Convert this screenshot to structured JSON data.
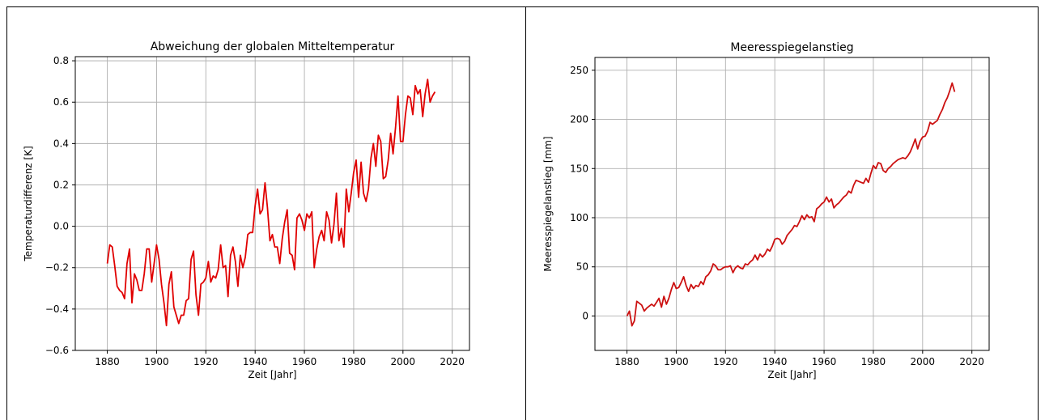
{
  "chart_data": [
    {
      "type": "line",
      "title": "Abweichung der globalen Mitteltemperatur",
      "xlabel": "Zeit [Jahr]",
      "ylabel": "Temperaturdifferenz [K]",
      "xlim": [
        1867,
        2027
      ],
      "ylim": [
        -0.6,
        0.82
      ],
      "xticks": [
        1880,
        1900,
        1920,
        1940,
        1960,
        1980,
        2000,
        2020
      ],
      "yticks": [
        -0.6,
        -0.4,
        -0.2,
        0.0,
        0.2,
        0.4,
        0.6,
        0.8
      ],
      "ytick_labels": [
        "−0.6",
        "−0.4",
        "−0.2",
        "0.0",
        "0.2",
        "0.4",
        "0.6",
        "0.8"
      ],
      "grid": true,
      "color": "#e00000",
      "series": [
        {
          "x": [
            1880,
            1881,
            1882,
            1883,
            1884,
            1885,
            1886,
            1887,
            1888,
            1889,
            1890,
            1891,
            1892,
            1893,
            1894,
            1895,
            1896,
            1897,
            1898,
            1899,
            1900,
            1901,
            1902,
            1903,
            1904,
            1905,
            1906,
            1907,
            1908,
            1909,
            1910,
            1911,
            1912,
            1913,
            1914,
            1915,
            1916,
            1917,
            1918,
            1919,
            1920,
            1921,
            1922,
            1923,
            1924,
            1925,
            1926,
            1927,
            1928,
            1929,
            1930,
            1931,
            1932,
            1933,
            1934,
            1935,
            1936,
            1937,
            1938,
            1939,
            1940,
            1941,
            1942,
            1943,
            1944,
            1945,
            1946,
            1947,
            1948,
            1949,
            1950,
            1951,
            1952,
            1953,
            1954,
            1955,
            1956,
            1957,
            1958,
            1959,
            1960,
            1961,
            1962,
            1963,
            1964,
            1965,
            1966,
            1967,
            1968,
            1969,
            1970,
            1971,
            1972,
            1973,
            1974,
            1975,
            1976,
            1977,
            1978,
            1979,
            1980,
            1981,
            1982,
            1983,
            1984,
            1985,
            1986,
            1987,
            1988,
            1989,
            1990,
            1991,
            1992,
            1993,
            1994,
            1995,
            1996,
            1997,
            1998,
            1999,
            2000,
            2001,
            2002,
            2003,
            2004,
            2005,
            2006,
            2007,
            2008,
            2009,
            2010,
            2011,
            2012,
            2013
          ],
          "y": [
            -0.18,
            -0.09,
            -0.1,
            -0.19,
            -0.29,
            -0.31,
            -0.32,
            -0.35,
            -0.18,
            -0.11,
            -0.37,
            -0.23,
            -0.26,
            -0.31,
            -0.31,
            -0.23,
            -0.11,
            -0.11,
            -0.27,
            -0.18,
            -0.09,
            -0.16,
            -0.28,
            -0.37,
            -0.48,
            -0.28,
            -0.22,
            -0.39,
            -0.43,
            -0.47,
            -0.43,
            -0.43,
            -0.36,
            -0.35,
            -0.16,
            -0.12,
            -0.33,
            -0.43,
            -0.28,
            -0.27,
            -0.25,
            -0.17,
            -0.27,
            -0.24,
            -0.25,
            -0.21,
            -0.09,
            -0.2,
            -0.19,
            -0.34,
            -0.14,
            -0.1,
            -0.17,
            -0.29,
            -0.14,
            -0.2,
            -0.15,
            -0.04,
            -0.03,
            -0.03,
            0.1,
            0.18,
            0.06,
            0.08,
            0.21,
            0.09,
            -0.07,
            -0.04,
            -0.1,
            -0.1,
            -0.18,
            -0.06,
            0.02,
            0.08,
            -0.13,
            -0.14,
            -0.21,
            0.04,
            0.06,
            0.03,
            -0.02,
            0.06,
            0.04,
            0.07,
            -0.2,
            -0.11,
            -0.05,
            -0.02,
            -0.07,
            0.07,
            0.03,
            -0.08,
            0.01,
            0.16,
            -0.07,
            -0.01,
            -0.1,
            0.18,
            0.07,
            0.16,
            0.26,
            0.32,
            0.14,
            0.31,
            0.16,
            0.12,
            0.18,
            0.33,
            0.4,
            0.29,
            0.44,
            0.41,
            0.23,
            0.24,
            0.32,
            0.45,
            0.35,
            0.48,
            0.63,
            0.41,
            0.41,
            0.54,
            0.63,
            0.62,
            0.54,
            0.68,
            0.64,
            0.66,
            0.53,
            0.64,
            0.71,
            0.6,
            0.63,
            0.65
          ]
        }
      ]
    },
    {
      "type": "line",
      "title": "Meeresspiegelanstieg",
      "xlabel": "Zeit [Jahr]",
      "ylabel": "Meeresspiegelanstieg [mm]",
      "xlim": [
        1867,
        2027
      ],
      "ylim": [
        -35,
        263
      ],
      "xticks": [
        1880,
        1900,
        1920,
        1940,
        1960,
        1980,
        2000,
        2020
      ],
      "yticks": [
        0,
        50,
        100,
        150,
        200,
        250
      ],
      "ytick_labels": [
        "0",
        "50",
        "100",
        "150",
        "200",
        "250"
      ],
      "grid": true,
      "color": "#cc1111",
      "series": [
        {
          "x": [
            1880,
            1881,
            1882,
            1883,
            1884,
            1885,
            1886,
            1887,
            1888,
            1889,
            1890,
            1891,
            1892,
            1893,
            1894,
            1895,
            1896,
            1897,
            1898,
            1899,
            1900,
            1901,
            1902,
            1903,
            1904,
            1905,
            1906,
            1907,
            1908,
            1909,
            1910,
            1911,
            1912,
            1913,
            1914,
            1915,
            1916,
            1917,
            1918,
            1919,
            1920,
            1921,
            1922,
            1923,
            1924,
            1925,
            1926,
            1927,
            1928,
            1929,
            1930,
            1931,
            1932,
            1933,
            1934,
            1935,
            1936,
            1937,
            1938,
            1939,
            1940,
            1941,
            1942,
            1943,
            1944,
            1945,
            1946,
            1947,
            1948,
            1949,
            1950,
            1951,
            1952,
            1953,
            1954,
            1955,
            1956,
            1957,
            1958,
            1959,
            1960,
            1961,
            1962,
            1963,
            1964,
            1965,
            1966,
            1967,
            1968,
            1969,
            1970,
            1971,
            1972,
            1973,
            1974,
            1975,
            1976,
            1977,
            1978,
            1979,
            1980,
            1981,
            1982,
            1983,
            1984,
            1985,
            1986,
            1987,
            1988,
            1989,
            1990,
            1991,
            1992,
            1993,
            1994,
            1995,
            1996,
            1997,
            1998,
            1999,
            2000,
            2001,
            2002,
            2003,
            2004,
            2005,
            2006,
            2007,
            2008,
            2009,
            2010,
            2011,
            2012,
            2013
          ],
          "y": [
            0,
            5,
            -10,
            -5,
            15,
            13,
            11,
            5,
            8,
            10,
            12,
            10,
            14,
            18,
            9,
            20,
            12,
            18,
            27,
            34,
            28,
            29,
            34,
            40,
            31,
            25,
            32,
            28,
            31,
            30,
            35,
            32,
            40,
            42,
            46,
            53,
            51,
            47,
            47,
            49,
            50,
            50,
            51,
            44,
            49,
            51,
            49,
            48,
            53,
            52,
            55,
            57,
            62,
            57,
            63,
            60,
            63,
            68,
            66,
            71,
            78,
            79,
            78,
            73,
            76,
            82,
            85,
            88,
            92,
            91,
            96,
            102,
            98,
            103,
            100,
            101,
            96,
            109,
            111,
            114,
            116,
            121,
            116,
            119,
            110,
            113,
            115,
            118,
            121,
            123,
            127,
            125,
            133,
            138,
            137,
            136,
            135,
            140,
            136,
            145,
            153,
            150,
            156,
            155,
            148,
            146,
            150,
            152,
            155,
            157,
            159,
            160,
            161,
            160,
            163,
            167,
            173,
            180,
            170,
            178,
            182,
            183,
            188,
            197,
            195,
            197,
            199,
            205,
            210,
            217,
            222,
            229,
            237,
            228
          ]
        }
      ]
    }
  ]
}
